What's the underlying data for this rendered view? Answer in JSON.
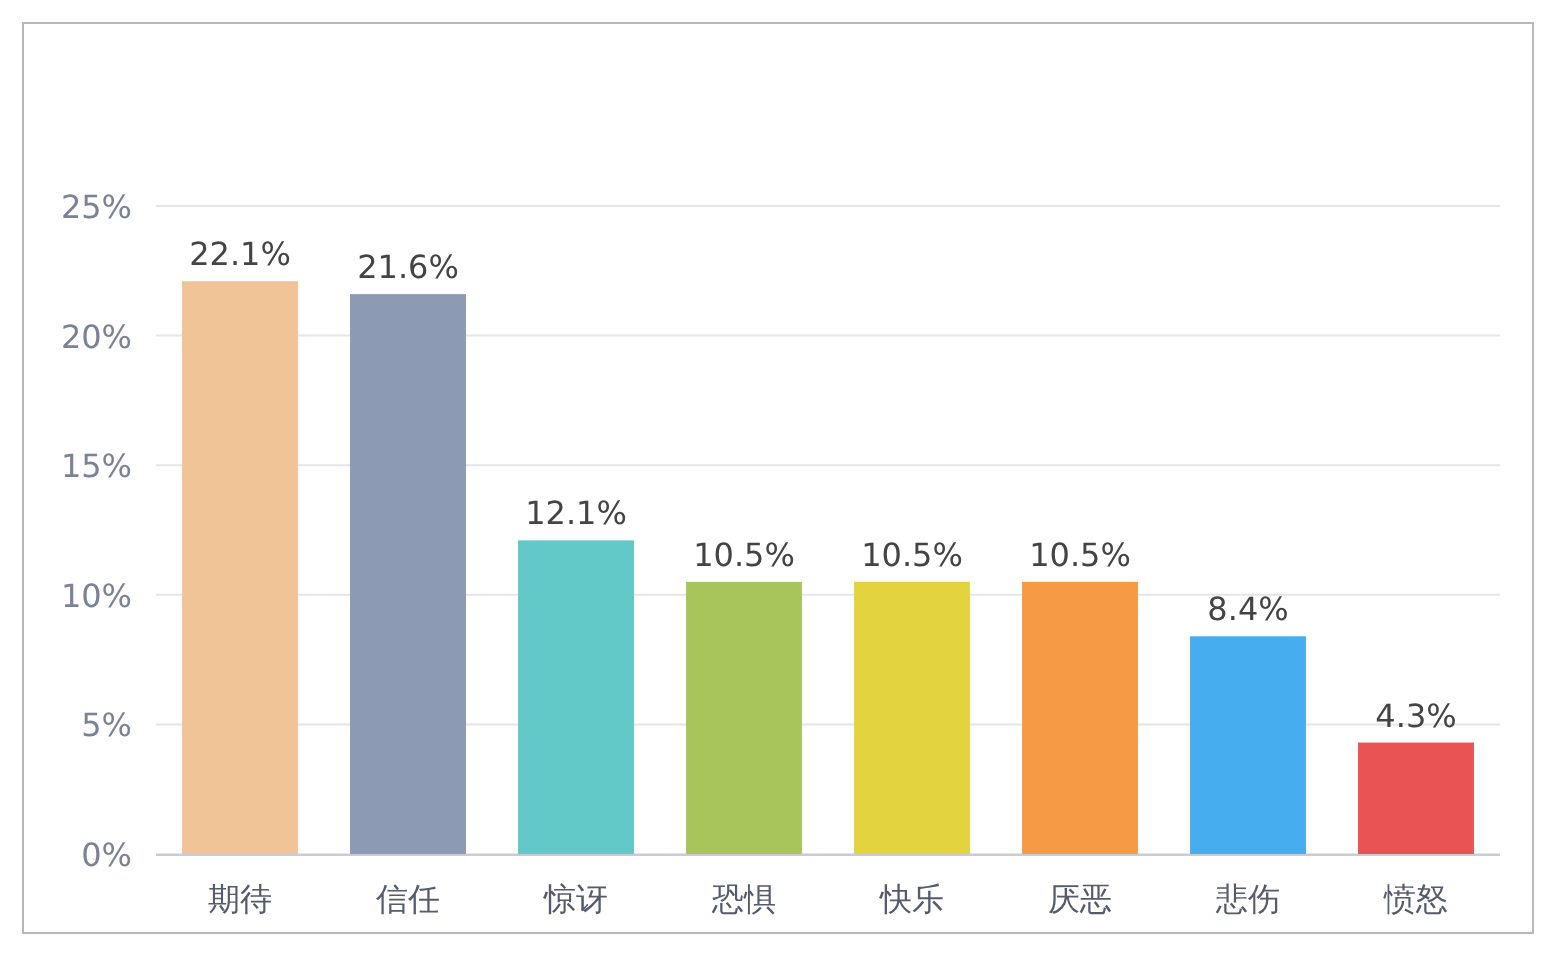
{
  "chart_data": {
    "type": "bar",
    "categories": [
      "期待",
      "信任",
      "惊讶",
      "恐惧",
      "快乐",
      "厌恶",
      "悲伤",
      "愤怒"
    ],
    "values": [
      22.1,
      21.6,
      12.1,
      10.5,
      10.5,
      10.5,
      8.4,
      4.3
    ],
    "colors": [
      "#f0c496",
      "#8c9ab3",
      "#62c8c8",
      "#a8c55c",
      "#e3d43f",
      "#f79a46",
      "#46aeef",
      "#ea5354"
    ],
    "value_labels": [
      "22.1%",
      "21.6%",
      "12.1%",
      "10.5%",
      "10.5%",
      "10.5%",
      "8.4%",
      "4.3%"
    ],
    "ylim": [
      0,
      25
    ],
    "yticks": [
      {
        "value": 0,
        "label": "0%"
      },
      {
        "value": 5,
        "label": "5%"
      },
      {
        "value": 10,
        "label": "10%"
      },
      {
        "value": 15,
        "label": "15%"
      },
      {
        "value": 20,
        "label": "20%"
      },
      {
        "value": 25,
        "label": "25%"
      }
    ],
    "grid": "y"
  }
}
